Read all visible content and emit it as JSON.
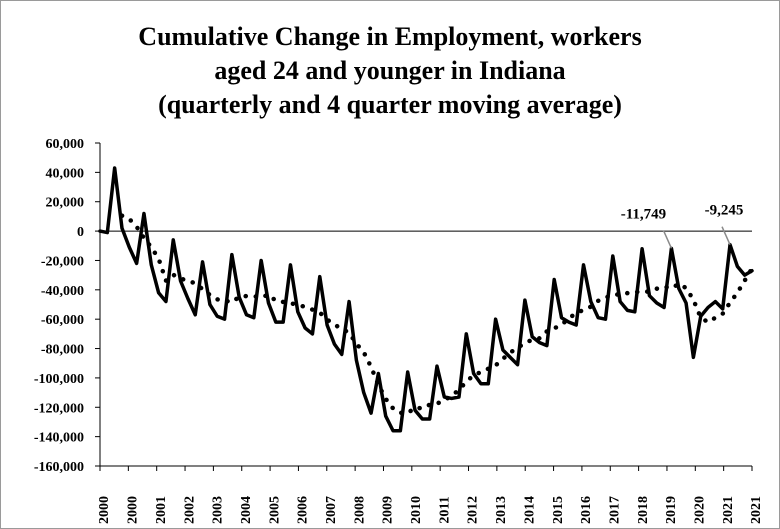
{
  "chart_data": {
    "type": "line",
    "title_lines": [
      "Cumulative Change in Employment, workers",
      "aged 24 and younger in Indiana",
      "(quarterly and 4 quarter moving average)"
    ],
    "ylim": [
      -160000,
      60000
    ],
    "y_ticks": [
      60000,
      40000,
      20000,
      0,
      -20000,
      -40000,
      -60000,
      -80000,
      -100000,
      -120000,
      -140000,
      -160000
    ],
    "y_tick_labels": [
      "60,000",
      "40,000",
      "20,000",
      "0",
      "-20,000",
      "-40,000",
      "-60,000",
      "-80,000",
      "-100,000",
      "-120,000",
      "-140,000",
      "-160,000"
    ],
    "x_tick_labels": [
      "2000",
      "2000",
      "2001",
      "2002",
      "2003",
      "2004",
      "2005",
      "2006",
      "2007",
      "2008",
      "2009",
      "2010",
      "2011",
      "2012",
      "2013",
      "2014",
      "2015",
      "2016",
      "2017",
      "2018",
      "2019",
      "2020",
      "2021",
      "2021"
    ],
    "grid": false,
    "legend": "none",
    "series": [
      {
        "style": "solid",
        "values": [
          0,
          -1000,
          43000,
          2000,
          -11000,
          -22000,
          12000,
          -23000,
          -42000,
          -48000,
          -6000,
          -34000,
          -46000,
          -57000,
          -21000,
          -50000,
          -58000,
          -60000,
          -16000,
          -45000,
          -57000,
          -59000,
          -20000,
          -49000,
          -62000,
          -62000,
          -23000,
          -55000,
          -66000,
          -70000,
          -31000,
          -64000,
          -77000,
          -84000,
          -48000,
          -88000,
          -110000,
          -124000,
          -97000,
          -126000,
          -136000,
          -136000,
          -96000,
          -122000,
          -128000,
          -128000,
          -92000,
          -113000,
          -114000,
          -113000,
          -70000,
          -97000,
          -104000,
          -104000,
          -60000,
          -81000,
          -86000,
          -91000,
          -47000,
          -72000,
          -76000,
          -78000,
          -33000,
          -59000,
          -62000,
          -64000,
          -23000,
          -48000,
          -59000,
          -60000,
          -17000,
          -48000,
          -54000,
          -55000,
          -12000,
          -44000,
          -49000,
          -52000,
          -11749,
          -39000,
          -49000,
          -86000,
          -58000,
          -52000,
          -48000,
          -53000,
          -9245,
          -24000,
          -30000,
          -27000
        ]
      },
      {
        "style": "dotted",
        "values": [
          null,
          null,
          null,
          10500,
          8250,
          3000,
          -4750,
          -11000,
          -18750,
          -33750,
          -29750,
          -32500,
          -33500,
          -35750,
          -39500,
          -43500,
          -46500,
          -47250,
          -48500,
          -44750,
          -44250,
          -44250,
          -45250,
          -43250,
          -47500,
          -48250,
          -49000,
          -50500,
          -51500,
          -53500,
          -55500,
          -60250,
          -63750,
          -66500,
          -69250,
          -76750,
          -82500,
          -92500,
          -104750,
          -114250,
          -120750,
          -123750,
          -124000,
          -120250,
          -120750,
          -118250,
          -117500,
          -115250,
          -112000,
          -108250,
          -102500,
          -98250,
          -96000,
          -93750,
          -91500,
          -87000,
          -82750,
          -79500,
          -76250,
          -74000,
          -73000,
          -68250,
          -66250,
          -63750,
          -59500,
          -55750,
          -53750,
          -51500,
          -47500,
          -45250,
          -43500,
          -43000,
          -42250,
          -41250,
          -41750,
          -41000,
          -39250,
          -37750,
          -39000,
          -36000,
          -38750,
          -46750,
          -59000,
          -62000,
          -59000,
          -56250,
          -48750,
          -42000,
          -33750,
          -25500
        ]
      }
    ],
    "annotations": [
      {
        "label": "-11,749",
        "index": 78,
        "value": -11749
      },
      {
        "label": "-9,245",
        "index": 86,
        "value": -9245
      }
    ]
  }
}
